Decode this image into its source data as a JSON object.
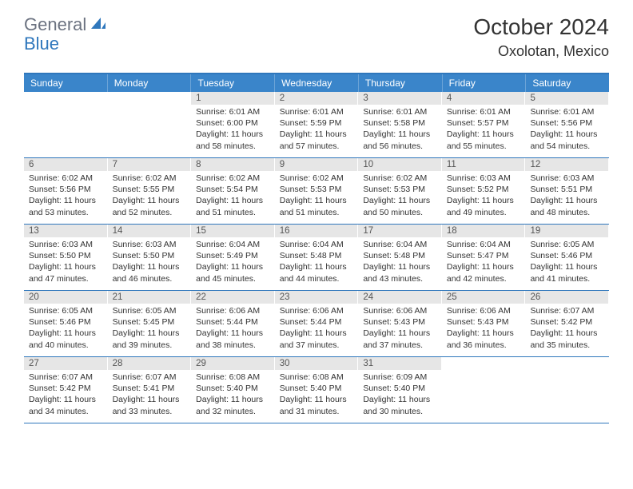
{
  "logo": {
    "general": "General",
    "blue": "Blue",
    "icon_color": "#2f77bc"
  },
  "title": "October 2024",
  "location": "Oxolotan, Mexico",
  "weekdays": [
    "Sunday",
    "Monday",
    "Tuesday",
    "Wednesday",
    "Thursday",
    "Friday",
    "Saturday"
  ],
  "colors": {
    "header_bar": "#3a85ca",
    "border": "#2f77bc",
    "daynum_bg": "#e6e6e6",
    "text": "#333333"
  },
  "weeks": [
    [
      {
        "n": "",
        "sr": "",
        "ss": "",
        "dl": ""
      },
      {
        "n": "",
        "sr": "",
        "ss": "",
        "dl": ""
      },
      {
        "n": "1",
        "sr": "Sunrise: 6:01 AM",
        "ss": "Sunset: 6:00 PM",
        "dl": "Daylight: 11 hours and 58 minutes."
      },
      {
        "n": "2",
        "sr": "Sunrise: 6:01 AM",
        "ss": "Sunset: 5:59 PM",
        "dl": "Daylight: 11 hours and 57 minutes."
      },
      {
        "n": "3",
        "sr": "Sunrise: 6:01 AM",
        "ss": "Sunset: 5:58 PM",
        "dl": "Daylight: 11 hours and 56 minutes."
      },
      {
        "n": "4",
        "sr": "Sunrise: 6:01 AM",
        "ss": "Sunset: 5:57 PM",
        "dl": "Daylight: 11 hours and 55 minutes."
      },
      {
        "n": "5",
        "sr": "Sunrise: 6:01 AM",
        "ss": "Sunset: 5:56 PM",
        "dl": "Daylight: 11 hours and 54 minutes."
      }
    ],
    [
      {
        "n": "6",
        "sr": "Sunrise: 6:02 AM",
        "ss": "Sunset: 5:56 PM",
        "dl": "Daylight: 11 hours and 53 minutes."
      },
      {
        "n": "7",
        "sr": "Sunrise: 6:02 AM",
        "ss": "Sunset: 5:55 PM",
        "dl": "Daylight: 11 hours and 52 minutes."
      },
      {
        "n": "8",
        "sr": "Sunrise: 6:02 AM",
        "ss": "Sunset: 5:54 PM",
        "dl": "Daylight: 11 hours and 51 minutes."
      },
      {
        "n": "9",
        "sr": "Sunrise: 6:02 AM",
        "ss": "Sunset: 5:53 PM",
        "dl": "Daylight: 11 hours and 51 minutes."
      },
      {
        "n": "10",
        "sr": "Sunrise: 6:02 AM",
        "ss": "Sunset: 5:53 PM",
        "dl": "Daylight: 11 hours and 50 minutes."
      },
      {
        "n": "11",
        "sr": "Sunrise: 6:03 AM",
        "ss": "Sunset: 5:52 PM",
        "dl": "Daylight: 11 hours and 49 minutes."
      },
      {
        "n": "12",
        "sr": "Sunrise: 6:03 AM",
        "ss": "Sunset: 5:51 PM",
        "dl": "Daylight: 11 hours and 48 minutes."
      }
    ],
    [
      {
        "n": "13",
        "sr": "Sunrise: 6:03 AM",
        "ss": "Sunset: 5:50 PM",
        "dl": "Daylight: 11 hours and 47 minutes."
      },
      {
        "n": "14",
        "sr": "Sunrise: 6:03 AM",
        "ss": "Sunset: 5:50 PM",
        "dl": "Daylight: 11 hours and 46 minutes."
      },
      {
        "n": "15",
        "sr": "Sunrise: 6:04 AM",
        "ss": "Sunset: 5:49 PM",
        "dl": "Daylight: 11 hours and 45 minutes."
      },
      {
        "n": "16",
        "sr": "Sunrise: 6:04 AM",
        "ss": "Sunset: 5:48 PM",
        "dl": "Daylight: 11 hours and 44 minutes."
      },
      {
        "n": "17",
        "sr": "Sunrise: 6:04 AM",
        "ss": "Sunset: 5:48 PM",
        "dl": "Daylight: 11 hours and 43 minutes."
      },
      {
        "n": "18",
        "sr": "Sunrise: 6:04 AM",
        "ss": "Sunset: 5:47 PM",
        "dl": "Daylight: 11 hours and 42 minutes."
      },
      {
        "n": "19",
        "sr": "Sunrise: 6:05 AM",
        "ss": "Sunset: 5:46 PM",
        "dl": "Daylight: 11 hours and 41 minutes."
      }
    ],
    [
      {
        "n": "20",
        "sr": "Sunrise: 6:05 AM",
        "ss": "Sunset: 5:46 PM",
        "dl": "Daylight: 11 hours and 40 minutes."
      },
      {
        "n": "21",
        "sr": "Sunrise: 6:05 AM",
        "ss": "Sunset: 5:45 PM",
        "dl": "Daylight: 11 hours and 39 minutes."
      },
      {
        "n": "22",
        "sr": "Sunrise: 6:06 AM",
        "ss": "Sunset: 5:44 PM",
        "dl": "Daylight: 11 hours and 38 minutes."
      },
      {
        "n": "23",
        "sr": "Sunrise: 6:06 AM",
        "ss": "Sunset: 5:44 PM",
        "dl": "Daylight: 11 hours and 37 minutes."
      },
      {
        "n": "24",
        "sr": "Sunrise: 6:06 AM",
        "ss": "Sunset: 5:43 PM",
        "dl": "Daylight: 11 hours and 37 minutes."
      },
      {
        "n": "25",
        "sr": "Sunrise: 6:06 AM",
        "ss": "Sunset: 5:43 PM",
        "dl": "Daylight: 11 hours and 36 minutes."
      },
      {
        "n": "26",
        "sr": "Sunrise: 6:07 AM",
        "ss": "Sunset: 5:42 PM",
        "dl": "Daylight: 11 hours and 35 minutes."
      }
    ],
    [
      {
        "n": "27",
        "sr": "Sunrise: 6:07 AM",
        "ss": "Sunset: 5:42 PM",
        "dl": "Daylight: 11 hours and 34 minutes."
      },
      {
        "n": "28",
        "sr": "Sunrise: 6:07 AM",
        "ss": "Sunset: 5:41 PM",
        "dl": "Daylight: 11 hours and 33 minutes."
      },
      {
        "n": "29",
        "sr": "Sunrise: 6:08 AM",
        "ss": "Sunset: 5:40 PM",
        "dl": "Daylight: 11 hours and 32 minutes."
      },
      {
        "n": "30",
        "sr": "Sunrise: 6:08 AM",
        "ss": "Sunset: 5:40 PM",
        "dl": "Daylight: 11 hours and 31 minutes."
      },
      {
        "n": "31",
        "sr": "Sunrise: 6:09 AM",
        "ss": "Sunset: 5:40 PM",
        "dl": "Daylight: 11 hours and 30 minutes."
      },
      {
        "n": "",
        "sr": "",
        "ss": "",
        "dl": ""
      },
      {
        "n": "",
        "sr": "",
        "ss": "",
        "dl": ""
      }
    ]
  ]
}
